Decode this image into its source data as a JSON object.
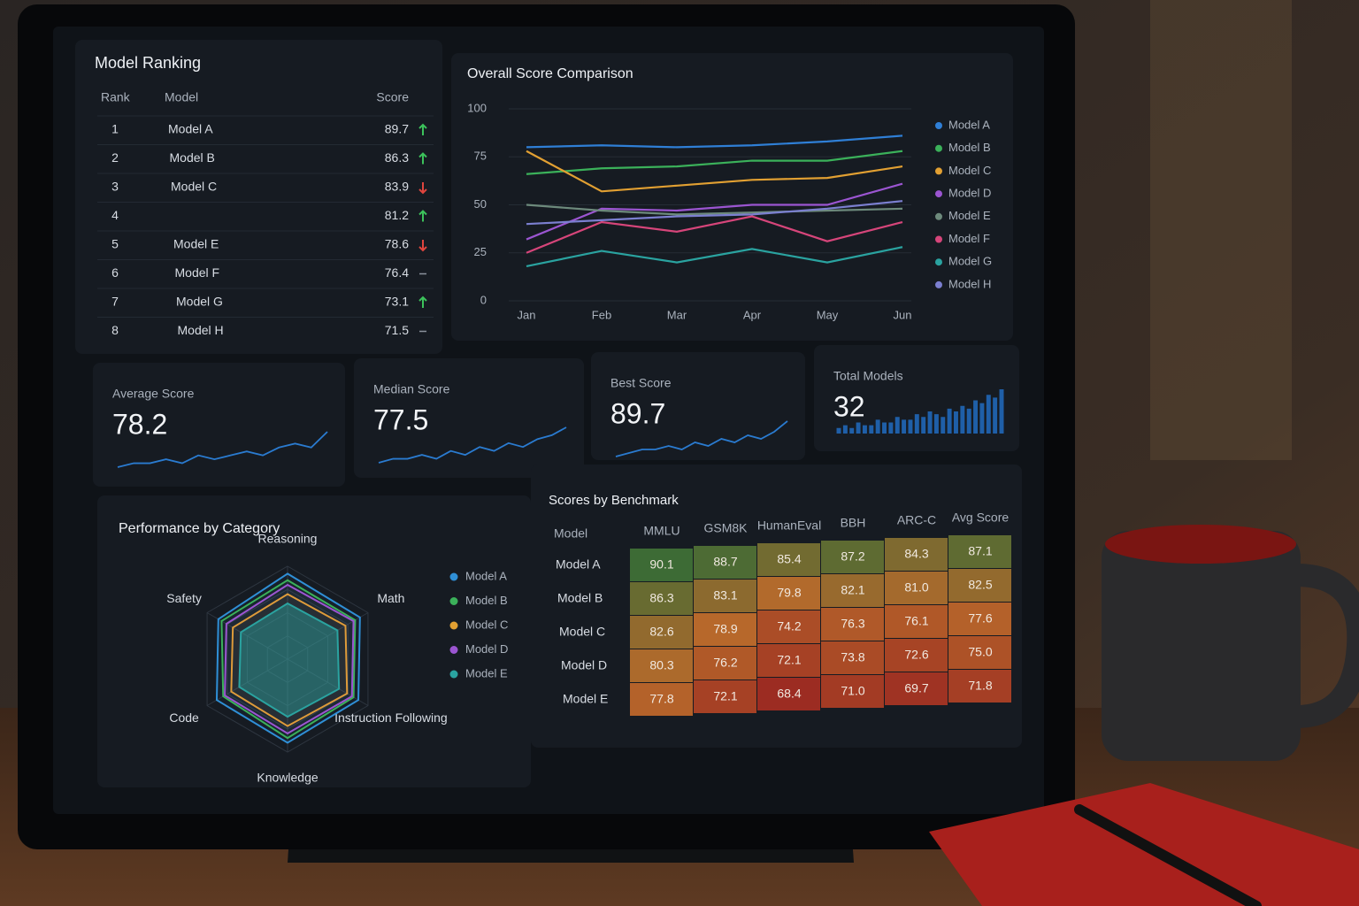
{
  "ranking": {
    "title": "Model Ranking",
    "headers": [
      "Rank",
      "Model",
      "Score"
    ],
    "rows": [
      {
        "rank": 1,
        "model": "Model A",
        "score": 89.7,
        "trend": "up"
      },
      {
        "rank": 2,
        "model": "Model B",
        "score": 86.3,
        "trend": "up"
      },
      {
        "rank": 3,
        "model": "Model C",
        "score": 83.9,
        "trend": "down"
      },
      {
        "rank": 4,
        "model": null,
        "score": 81.2,
        "trend": "up"
      },
      {
        "rank": 5,
        "model": "Model E",
        "score": 78.6,
        "trend": "down"
      },
      {
        "rank": 6,
        "model": "Model F",
        "score": 76.4,
        "trend": "flat"
      },
      {
        "rank": 7,
        "model": "Model G",
        "score": 73.1,
        "trend": "up"
      },
      {
        "rank": 8,
        "model": "Model H",
        "score": 71.5,
        "trend": "flat"
      }
    ]
  },
  "chart_data": [
    {
      "type": "line",
      "title": "Overall Score Comparison",
      "categories": [
        "Jan",
        "Feb",
        "Mar",
        "Apr",
        "May",
        "Jun"
      ],
      "ylim": [
        0,
        100
      ],
      "yticks": [
        0,
        25,
        50,
        75,
        100
      ],
      "grid": true,
      "legend": "right",
      "series": [
        {
          "name": "Model A",
          "color": "#2f7fd6",
          "values": [
            80,
            81,
            80,
            81,
            83,
            86
          ]
        },
        {
          "name": "Model B",
          "color": "#3bb15a",
          "values": [
            66,
            69,
            70,
            73,
            73,
            78
          ]
        },
        {
          "name": "Model C",
          "color": "#e2a032",
          "values": [
            78,
            57,
            60,
            63,
            64,
            70
          ]
        },
        {
          "name": "Model D",
          "color": "#9b55d1",
          "values": [
            32,
            48,
            47,
            50,
            50,
            61
          ]
        },
        {
          "name": "Model E",
          "color": "#6d8a7c",
          "values": [
            50,
            47,
            45,
            46,
            47,
            48
          ]
        },
        {
          "name": "Model F",
          "color": "#d6457a",
          "values": [
            25,
            41,
            36,
            44,
            31,
            41
          ]
        },
        {
          "name": "Model G",
          "color": "#2aa3a0",
          "values": [
            18,
            26,
            20,
            27,
            20,
            28
          ]
        },
        {
          "name": "Model H",
          "color": "#7b7fd0",
          "values": [
            40,
            42,
            44,
            45,
            48,
            52
          ]
        }
      ]
    },
    {
      "type": "radar",
      "title": "Performance by Category",
      "axes": [
        "Reasoning",
        "Math",
        "Instruction Following",
        "Knowledge",
        "Code",
        "Safety"
      ],
      "rlim": [
        0,
        100
      ],
      "legend": "right",
      "series": [
        {
          "name": "Model A",
          "color": "#2f8fd6",
          "values": [
            92,
            90,
            88,
            90,
            88,
            86
          ]
        },
        {
          "name": "Model B",
          "color": "#3bb15a",
          "values": [
            85,
            84,
            82,
            85,
            80,
            82
          ]
        },
        {
          "name": "Model C",
          "color": "#e2a032",
          "values": [
            70,
            72,
            74,
            72,
            70,
            68
          ]
        },
        {
          "name": "Model D",
          "color": "#9b55d1",
          "values": [
            80,
            82,
            80,
            80,
            78,
            76
          ]
        },
        {
          "name": "Model E",
          "color": "#2aa3a0",
          "values": [
            60,
            62,
            64,
            62,
            60,
            58
          ]
        }
      ]
    }
  ],
  "kpis": [
    {
      "label": "Average Score",
      "value": 78.2,
      "sparkline": {
        "type": "line",
        "values": [
          3,
          4,
          4,
          5,
          4,
          6,
          5,
          6,
          7,
          6,
          8,
          9,
          8,
          12
        ]
      }
    },
    {
      "label": "Median Score",
      "value": 77.5,
      "sparkline": {
        "type": "line",
        "values": [
          2,
          3,
          3,
          4,
          3,
          5,
          4,
          6,
          5,
          7,
          6,
          8,
          9,
          11
        ]
      }
    },
    {
      "label": "Best Score",
      "value": 89.7,
      "sparkline": {
        "type": "line",
        "values": [
          2,
          3,
          4,
          4,
          5,
          4,
          6,
          5,
          7,
          6,
          8,
          7,
          9,
          12
        ]
      }
    },
    {
      "label": "Total Models",
      "value": 32,
      "sparkline": {
        "type": "bar",
        "values": [
          2,
          3,
          2,
          4,
          3,
          3,
          5,
          4,
          4,
          6,
          5,
          5,
          7,
          6,
          8,
          7,
          6,
          9,
          8,
          10,
          9,
          12,
          11,
          14,
          13,
          16
        ]
      }
    }
  ],
  "benchmark_table": {
    "title": "Scores by Benchmark",
    "columns": [
      "Model",
      "MMLU",
      "GSM8K",
      "HumanEval",
      "BBH",
      "ARC-C",
      "Avg Score"
    ],
    "colors": [
      "#9c2c22",
      "#b86a2b",
      "#3d6b35"
    ],
    "rows": [
      {
        "model": "Model A",
        "scores": [
          "90.1",
          "88.7",
          "85.4",
          "87.2",
          "84.3",
          "87.1"
        ]
      },
      {
        "model": "Model B",
        "scores": [
          "86.3",
          "83.1",
          "79.8",
          "82.1",
          "81.0",
          "82.5"
        ]
      },
      {
        "model": "Model C",
        "scores": [
          "82.6",
          "78.9",
          "74.2",
          "76.3",
          "76.1",
          "77.6"
        ]
      },
      {
        "model": "Model D",
        "scores": [
          "80.3",
          "76.2",
          "72.1",
          "73.8",
          "72.6",
          "75.0"
        ]
      },
      {
        "model": "Model E",
        "scores": [
          "77.8",
          "72.1",
          "68.4",
          "71.0",
          "69.7",
          "71.8"
        ]
      }
    ]
  }
}
